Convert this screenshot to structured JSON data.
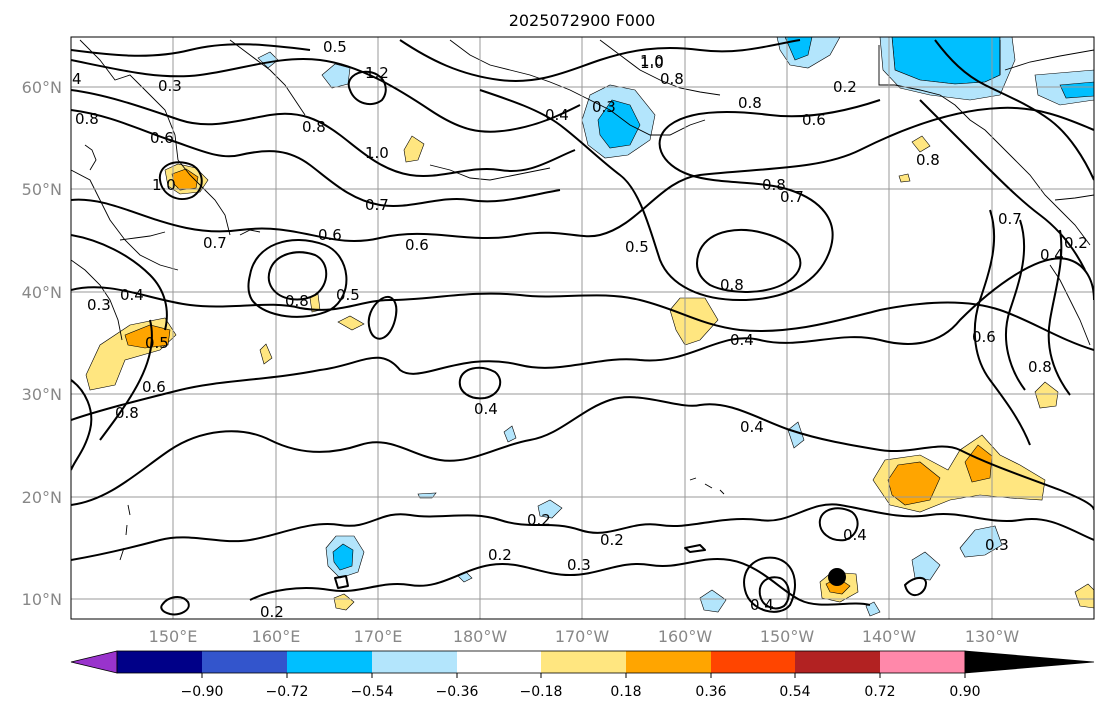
{
  "title": "2025072900 F000",
  "map": {
    "lat_labels": [
      "60°N",
      "50°N",
      "40°N",
      "30°N",
      "20°N",
      "10°N"
    ],
    "lon_labels": [
      "150°E",
      "160°E",
      "170°E",
      "180°W",
      "170°W",
      "160°W",
      "150°W",
      "140°W",
      "130°W"
    ],
    "contour_labels": [
      "0.5",
      "1.2",
      "0.3",
      "0.4",
      "0.3",
      "0.8",
      "1.0",
      "0.8",
      "0.2",
      "0.6",
      "0.6",
      "0.8",
      "1.0",
      "1.0",
      "0.8",
      "0.7",
      "0.8",
      "0.7",
      "0.7",
      "0.6",
      "0.6",
      "0.5",
      "0.8",
      "0.8",
      "0.5",
      "0.4",
      "0.5",
      "0.7",
      "0.6",
      "0.6",
      "0.8",
      "0.8",
      "0.4",
      "0.4",
      "0.4",
      "0.4",
      "0.2",
      "0.2",
      "0.3",
      "0.2",
      "0.4",
      "0.3",
      "0.4",
      "0.2",
      "1.0",
      "0.8",
      "0.3",
      "0.2",
      "4"
    ],
    "marker_icon": "storm-center-marker"
  },
  "colorbar": {
    "ticks": [
      "−0.90",
      "−0.72",
      "−0.54",
      "−0.36",
      "−0.18",
      "0.18",
      "0.36",
      "0.54",
      "0.72",
      "0.90"
    ],
    "colors": [
      "#9933cc",
      "#000088",
      "#3355cc",
      "#00bfff",
      "#b3e5fc",
      "#ffffff",
      "#ffe680",
      "#ffa500",
      "#ff4500",
      "#b22222",
      "#ff88aa"
    ]
  }
}
